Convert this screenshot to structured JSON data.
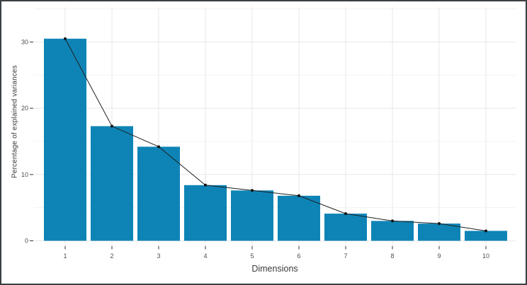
{
  "chart_data": {
    "type": "bar",
    "overlay": "line+points",
    "title": "",
    "xlabel": "Dimensions",
    "ylabel": "Percentage of explained variances",
    "categories": [
      "1",
      "2",
      "3",
      "4",
      "5",
      "6",
      "7",
      "8",
      "9",
      "10"
    ],
    "values": [
      30.5,
      17.3,
      14.2,
      8.4,
      7.6,
      6.8,
      4.1,
      3.0,
      2.6,
      1.5
    ],
    "ylim": [
      0,
      35
    ],
    "yticks": [
      0,
      10,
      20,
      30
    ],
    "yticks_minor": [
      5,
      15,
      25,
      35
    ],
    "grid": "on",
    "legend": "none",
    "colors": {
      "bar_fill": "#0e84b6",
      "line": "#1f1f1f",
      "point": "#111111",
      "grid_major": "#e7e7e7",
      "grid_minor": "#f3f3f3",
      "tick_mark": "#333333",
      "tick_text": "#4d4d4d",
      "frame_border": "#3a3f44"
    }
  }
}
